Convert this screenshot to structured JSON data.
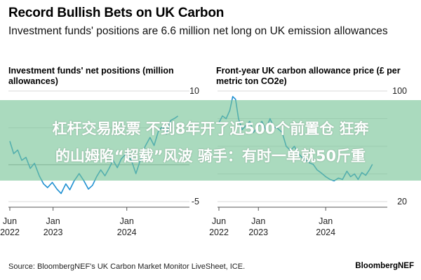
{
  "header": {
    "title": "Record Bullish Bets on UK Carbon",
    "subtitle": "Investment funds' positions are 6.6 million net long on UK emission allowances"
  },
  "footer": {
    "source": "Source: BloombergNEF's UK Carbon Market Monitor LiveSheet, ICE.",
    "brand": "BloombergNEF"
  },
  "overlay": {
    "line1": "杠杆交易股票 不到8年开了近500个前置仓 狂奔",
    "line2": "的山姆陷“超载”风波 骑手：有时一单就50斤重",
    "color": "#76c496"
  },
  "chart_data": [
    {
      "type": "line",
      "title": "Investment funds' net positions (million allowances)",
      "ylim": [
        -5,
        10
      ],
      "yticks": [
        10,
        5,
        0,
        -5
      ],
      "ytick_labels": [
        "10",
        "",
        "",
        "-5"
      ],
      "xlim": [
        "2022-06-01",
        "2024-09-15"
      ],
      "xticks": [
        {
          "date": "2022-06-01",
          "label1": "Jun",
          "label2": "2022"
        },
        {
          "date": "2023-01-01",
          "label1": "Jan",
          "label2": "2023"
        },
        {
          "date": "2024-01-01",
          "label1": "Jan",
          "label2": "2024"
        }
      ],
      "color": "#1d8fd1",
      "series": [
        {
          "x": [
            "2022-06-01",
            "2022-06-20",
            "2022-07-10",
            "2022-07-30",
            "2022-08-20",
            "2022-09-10",
            "2022-10-01",
            "2022-10-25",
            "2022-11-15",
            "2022-12-05",
            "2022-12-28",
            "2023-01-20",
            "2023-02-10",
            "2023-03-05",
            "2023-03-25",
            "2023-04-15",
            "2023-05-10",
            "2023-06-01",
            "2023-06-25",
            "2023-07-15",
            "2023-08-05",
            "2023-08-25",
            "2023-09-15",
            "2023-10-05",
            "2023-10-25",
            "2023-11-15",
            "2023-12-05",
            "2024-01-01",
            "2024-01-25",
            "2024-02-15",
            "2024-03-10",
            "2024-04-01",
            "2024-04-25",
            "2024-05-15",
            "2024-06-05",
            "2024-06-25",
            "2024-07-15",
            "2024-08-05",
            "2024-08-25",
            "2024-09-10"
          ],
          "values": [
            3.2,
            1.5,
            2.0,
            0.6,
            1.0,
            -0.5,
            0.2,
            -1.5,
            -2.6,
            -3.1,
            -2.4,
            -3.3,
            -3.9,
            -2.6,
            -3.4,
            -2.2,
            -1.2,
            -2.1,
            -3.3,
            -2.8,
            -1.6,
            -0.7,
            -1.5,
            -0.5,
            0.6,
            -0.4,
            0.8,
            1.6,
            0.5,
            -1.2,
            0.8,
            2.5,
            3.7,
            2.6,
            4.5,
            5.2,
            4.2,
            6.0,
            6.3,
            6.6
          ]
        }
      ]
    },
    {
      "type": "line",
      "title": "Front-year UK carbon allowance price (£ per metric ton CO2e)",
      "ylim": [
        20,
        100
      ],
      "yticks": [
        100,
        80,
        60,
        40,
        20
      ],
      "ytick_labels": [
        "100",
        "",
        "",
        "",
        "20"
      ],
      "xlim": [
        "2022-06-01",
        "2024-09-15"
      ],
      "xticks": [
        {
          "date": "2022-06-01",
          "label1": "Jun",
          "label2": "2022"
        },
        {
          "date": "2023-01-01",
          "label1": "Jan",
          "label2": "2023"
        },
        {
          "date": "2024-01-01",
          "label1": "Jan",
          "label2": "2024"
        }
      ],
      "color": "#1d8fd1",
      "series": [
        {
          "x": [
            "2022-06-01",
            "2022-06-20",
            "2022-07-10",
            "2022-07-30",
            "2022-08-15",
            "2022-08-30",
            "2022-09-15",
            "2022-10-05",
            "2022-10-25",
            "2022-11-15",
            "2022-12-05",
            "2022-12-28",
            "2023-01-20",
            "2023-02-10",
            "2023-03-05",
            "2023-03-25",
            "2023-04-15",
            "2023-05-10",
            "2023-06-01",
            "2023-06-25",
            "2023-07-15",
            "2023-08-05",
            "2023-08-25",
            "2023-09-15",
            "2023-10-05",
            "2023-10-25",
            "2023-11-15",
            "2023-12-05",
            "2024-01-01",
            "2024-01-25",
            "2024-02-15",
            "2024-03-10",
            "2024-04-01",
            "2024-04-25",
            "2024-05-15",
            "2024-06-05",
            "2024-06-25",
            "2024-07-15",
            "2024-08-05",
            "2024-08-25",
            "2024-09-10"
          ],
          "values": [
            77,
            82,
            80,
            86,
            96,
            94,
            80,
            72,
            75,
            78,
            70,
            74,
            78,
            72,
            80,
            74,
            73,
            70,
            60,
            57,
            60,
            55,
            52,
            50,
            48,
            47,
            43,
            41,
            38,
            36,
            35,
            37,
            36,
            42,
            38,
            40,
            36,
            41,
            39,
            43,
            47
          ]
        }
      ]
    }
  ]
}
